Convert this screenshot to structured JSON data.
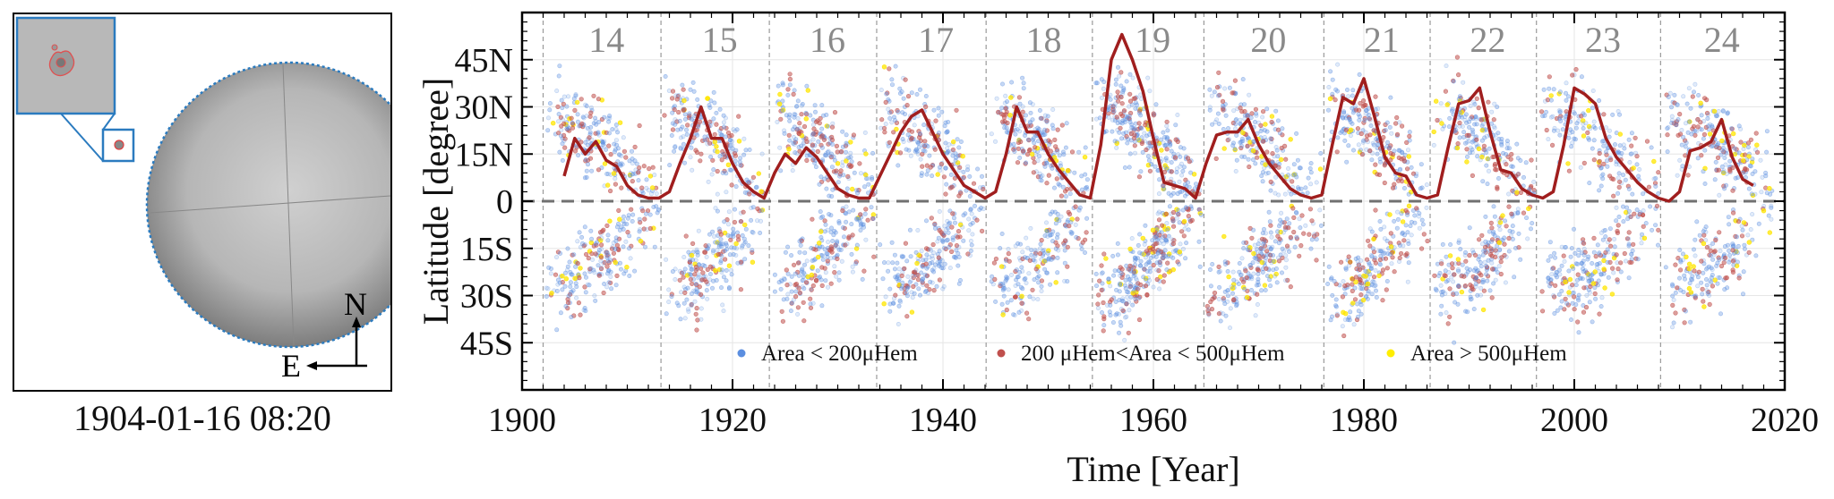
{
  "sun_image": {
    "caption": "1904-01-16 08:20",
    "compass_north": "N",
    "compass_east": "E"
  },
  "chart_data": {
    "type": "scatter",
    "title": "",
    "xlabel": "Time [Year]",
    "ylabel": "Latitude [degree]",
    "xlim": [
      1900,
      2020
    ],
    "ylim": [
      -60,
      60
    ],
    "x_ticks": [
      1900,
      1920,
      1940,
      1960,
      1980,
      2000,
      2020
    ],
    "x_tick_labels": [
      "1900",
      "1920",
      "1940",
      "1960",
      "1980",
      "2000",
      "2020"
    ],
    "y_ticks": [
      45,
      30,
      15,
      0,
      -15,
      -30,
      -45
    ],
    "y_tick_labels": [
      "45N",
      "30N",
      "15N",
      "0",
      "15S",
      "30S",
      "45S"
    ],
    "grid": true,
    "legend_position": "bottom-center",
    "legend": [
      {
        "label": "Area < 200μHem",
        "color": "#5b8ee0"
      },
      {
        "label": "200 μHem<Area < 500μHem",
        "color": "#c0504d"
      },
      {
        "label": "Area > 500μHem",
        "color": "#ffee00"
      }
    ],
    "cycles": [
      {
        "number": "14",
        "start": 1902.0,
        "end": 1913.2
      },
      {
        "number": "15",
        "start": 1913.2,
        "end": 1923.5
      },
      {
        "number": "16",
        "start": 1923.5,
        "end": 1933.7
      },
      {
        "number": "17",
        "start": 1933.7,
        "end": 1944.1
      },
      {
        "number": "18",
        "start": 1944.1,
        "end": 1954.2
      },
      {
        "number": "19",
        "start": 1954.2,
        "end": 1964.8
      },
      {
        "number": "20",
        "start": 1964.8,
        "end": 1976.2
      },
      {
        "number": "21",
        "start": 1976.2,
        "end": 1986.3
      },
      {
        "number": "22",
        "start": 1986.3,
        "end": 1996.4
      },
      {
        "number": "23",
        "start": 1996.4,
        "end": 2008.2
      },
      {
        "number": "24",
        "start": 2008.2,
        "end": 2019.0
      }
    ],
    "northern_mean_latitude": {
      "color": "#a01e1e",
      "x": [
        1904,
        1905,
        1906,
        1907,
        1908,
        1909,
        1910,
        1911,
        1912,
        1913,
        1914,
        1915,
        1916,
        1917,
        1918,
        1919,
        1920,
        1921,
        1922,
        1923,
        1924,
        1925,
        1926,
        1927,
        1928,
        1929,
        1930,
        1931,
        1932,
        1933,
        1934,
        1935,
        1936,
        1937,
        1938,
        1939,
        1940,
        1941,
        1942,
        1943,
        1944,
        1945,
        1946,
        1947,
        1948,
        1949,
        1950,
        1951,
        1952,
        1953,
        1954,
        1955,
        1956,
        1957,
        1958,
        1959,
        1960,
        1961,
        1962,
        1963,
        1964,
        1965,
        1966,
        1967,
        1968,
        1969,
        1970,
        1971,
        1972,
        1973,
        1974,
        1975,
        1976,
        1977,
        1978,
        1979,
        1980,
        1981,
        1982,
        1983,
        1984,
        1985,
        1986,
        1987,
        1988,
        1989,
        1990,
        1991,
        1992,
        1993,
        1994,
        1995,
        1996,
        1997,
        1998,
        1999,
        2000,
        2001,
        2002,
        2003,
        2004,
        2005,
        2006,
        2007,
        2008,
        2009,
        2010,
        2011,
        2012,
        2013,
        2014,
        2015,
        2016,
        2017
      ],
      "y": [
        8,
        20,
        15,
        19,
        13,
        11,
        5,
        2,
        1,
        1,
        3,
        12,
        20,
        30,
        20,
        20,
        12,
        6,
        3,
        1,
        9,
        15,
        12,
        17,
        14,
        9,
        4,
        2,
        1,
        1,
        8,
        15,
        22,
        27,
        29,
        22,
        15,
        10,
        5,
        3,
        1,
        3,
        15,
        30,
        22,
        22,
        15,
        10,
        6,
        2,
        1,
        18,
        45,
        53,
        45,
        35,
        20,
        6,
        5,
        4,
        1,
        12,
        21,
        22,
        22,
        26,
        18,
        12,
        8,
        4,
        2,
        1,
        2,
        18,
        33,
        31,
        39,
        27,
        14,
        9,
        8,
        2,
        1,
        2,
        17,
        31,
        32,
        36,
        22,
        10,
        9,
        4,
        2,
        1,
        3,
        18,
        36,
        34,
        31,
        20,
        14,
        10,
        6,
        3,
        1,
        0,
        3,
        16,
        17,
        19,
        26,
        14,
        7,
        5
      ]
    }
  }
}
